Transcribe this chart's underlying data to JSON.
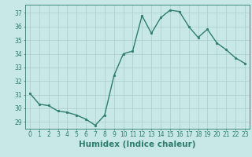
{
  "x": [
    0,
    1,
    2,
    3,
    4,
    5,
    6,
    7,
    8,
    9,
    10,
    11,
    12,
    13,
    14,
    15,
    16,
    17,
    18,
    19,
    20,
    21,
    22,
    23
  ],
  "y": [
    31.1,
    30.3,
    30.2,
    29.8,
    29.7,
    29.5,
    29.2,
    28.75,
    29.5,
    32.4,
    34.0,
    34.2,
    36.8,
    35.5,
    36.65,
    37.2,
    37.1,
    36.0,
    35.2,
    35.8,
    34.8,
    34.3,
    33.7,
    33.3
  ],
  "line_color": "#2e7d6e",
  "marker": "o",
  "marker_size": 1.8,
  "bg_color": "#c8e8e8",
  "grid_color": "#aacccc",
  "xlabel": "Humidex (Indice chaleur)",
  "ylim": [
    28.5,
    37.6
  ],
  "xlim": [
    -0.5,
    23.5
  ],
  "yticks": [
    29,
    30,
    31,
    32,
    33,
    34,
    35,
    36,
    37
  ],
  "xticks": [
    0,
    1,
    2,
    3,
    4,
    5,
    6,
    7,
    8,
    9,
    10,
    11,
    12,
    13,
    14,
    15,
    16,
    17,
    18,
    19,
    20,
    21,
    22,
    23
  ],
  "tick_fontsize": 5.5,
  "xlabel_fontsize": 7.5,
  "line_width": 1.0
}
